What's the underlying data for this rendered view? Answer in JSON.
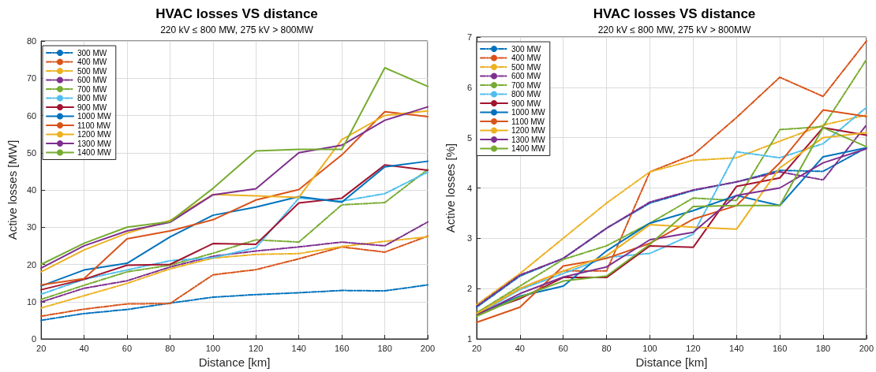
{
  "chart_data": [
    {
      "type": "line",
      "title": "HVAC losses VS distance",
      "subtitle": "220 kV ≤ 800 MW, 275 kV > 800MW",
      "xlabel": "Distance [km]",
      "ylabel": "Active losses [MW]",
      "x": [
        20,
        40,
        60,
        80,
        100,
        120,
        140,
        160,
        180,
        200
      ],
      "xlim": [
        20,
        200
      ],
      "xticks": [
        20,
        40,
        60,
        80,
        100,
        120,
        140,
        160,
        180,
        200
      ],
      "ylim": [
        0,
        80
      ],
      "yticks": [
        0,
        10,
        20,
        30,
        40,
        50,
        60,
        70,
        80
      ],
      "grid": true,
      "legend": "top left",
      "marker": "none",
      "series": [
        {
          "name": "300 MW",
          "color": "#0072bd",
          "line_style": "dashed",
          "values": [
            5,
            6.8,
            7.9,
            9.6,
            11.2,
            11.9,
            12.4,
            13,
            12.9,
            14.5
          ]
        },
        {
          "name": "400 MW",
          "color": "#d95319",
          "line_style": "dashed",
          "values": [
            6.1,
            8,
            9.4,
            9.5,
            17.2,
            18.6,
            21.5,
            24.7,
            23.3,
            27.6
          ]
        },
        {
          "name": "500 MW",
          "color": "#edb120",
          "line_style": "dashed",
          "values": [
            8.3,
            11.6,
            14.9,
            18.8,
            21.7,
            22.7,
            22.9,
            24.8,
            26.2,
            27.4
          ]
        },
        {
          "name": "600 MW",
          "color": "#7e2f8e",
          "line_style": "dashed",
          "values": [
            9.9,
            13.6,
            15.6,
            19.3,
            22.2,
            23.6,
            24.7,
            26,
            25,
            31.4
          ]
        },
        {
          "name": "700 MW",
          "color": "#77ac30",
          "line_style": "dashed",
          "values": [
            10.6,
            14.4,
            18,
            19.8,
            23,
            26.6,
            26,
            36,
            36.6,
            45.5
          ]
        },
        {
          "name": "800 MW",
          "color": "#4dbeee",
          "line_style": "dashed",
          "values": [
            12,
            16,
            18.5,
            21,
            21.8,
            24.5,
            37.8,
            37,
            39,
            44.8
          ]
        },
        {
          "name": "900 MW",
          "color": "#a2142f",
          "line_style": "solid",
          "values": [
            13.2,
            16,
            19.8,
            20,
            25.6,
            25.4,
            36.5,
            37.8,
            46.7,
            45.3
          ]
        },
        {
          "name": "1000 MW",
          "color": "#0072bd",
          "line_style": "solid",
          "values": [
            14.2,
            18.5,
            20.3,
            27.4,
            33.2,
            35.4,
            38.2,
            36.7,
            46.2,
            47.7
          ]
        },
        {
          "name": "1100 MW",
          "color": "#d95319",
          "line_style": "solid",
          "values": [
            14.5,
            16.2,
            26.9,
            29,
            32,
            37.3,
            40.1,
            49.4,
            61,
            59.7
          ]
        },
        {
          "name": "1200 MW",
          "color": "#edb120",
          "line_style": "solid",
          "values": [
            18,
            23.9,
            28.4,
            31.8,
            38.8,
            38.4,
            38,
            53.5,
            60,
            61.2
          ]
        },
        {
          "name": "1300 MW",
          "color": "#7e2f8e",
          "line_style": "solid",
          "values": [
            19,
            25,
            29,
            31.3,
            38.7,
            40.3,
            50,
            52,
            58.7,
            62.3
          ]
        },
        {
          "name": "1400 MW",
          "color": "#77ac30",
          "line_style": "solid",
          "values": [
            20,
            25.7,
            30,
            31.5,
            40.4,
            50.5,
            50.9,
            50.9,
            72.8,
            67.8
          ]
        }
      ]
    },
    {
      "type": "line",
      "title": "HVAC losses VS distance",
      "subtitle": "220 kV ≤ 800 MW, 275 kV > 800MW",
      "xlabel": "Distance [km]",
      "ylabel": "Active losses [%]",
      "x": [
        20,
        40,
        60,
        80,
        100,
        120,
        140,
        160,
        180,
        200
      ],
      "xlim": [
        20,
        200
      ],
      "xticks": [
        20,
        40,
        60,
        80,
        100,
        120,
        140,
        160,
        180,
        200
      ],
      "ylim": [
        1,
        7
      ],
      "yticks": [
        1,
        2,
        3,
        4,
        5,
        6,
        7
      ],
      "grid": true,
      "legend": "top left",
      "marker": "none",
      "series": [
        {
          "name": "300 MW",
          "color": "#0072bd",
          "line_style": "dashed",
          "values": [
            1.63,
            2.25,
            2.6,
            3.2,
            3.7,
            3.95,
            4.12,
            4.35,
            4.33,
            4.8
          ]
        },
        {
          "name": "400 MW",
          "color": "#d95319",
          "line_style": "dashed",
          "values": [
            1.5,
            2,
            2.35,
            2.35,
            4.32,
            4.66,
            5.4,
            6.2,
            5.82,
            6.92
          ]
        },
        {
          "name": "500 MW",
          "color": "#edb120",
          "line_style": "dashed",
          "values": [
            1.68,
            2.3,
            3,
            3.7,
            4.32,
            4.55,
            4.6,
            4.93,
            5.25,
            5.45
          ]
        },
        {
          "name": "600 MW",
          "color": "#7e2f8e",
          "line_style": "dashed",
          "values": [
            1.65,
            2.27,
            2.6,
            3.2,
            3.72,
            3.96,
            4.12,
            4.32,
            4.16,
            5.25
          ]
        },
        {
          "name": "700 MW",
          "color": "#77ac30",
          "line_style": "dashed",
          "values": [
            1.52,
            2.05,
            2.58,
            2.85,
            3.3,
            3.8,
            3.75,
            5.16,
            5.22,
            6.55
          ]
        },
        {
          "name": "800 MW",
          "color": "#4dbeee",
          "line_style": "dashed",
          "values": [
            1.48,
            1.98,
            2.3,
            2.62,
            2.7,
            3.08,
            4.72,
            4.6,
            4.88,
            5.6
          ]
        },
        {
          "name": "900 MW",
          "color": "#a2142f",
          "line_style": "solid",
          "values": [
            1.5,
            1.8,
            2.22,
            2.22,
            2.85,
            2.82,
            4.03,
            4.2,
            5.2,
            5.05
          ]
        },
        {
          "name": "1000 MW",
          "color": "#0072bd",
          "line_style": "solid",
          "values": [
            1.48,
            1.85,
            2.05,
            2.75,
            3.3,
            3.55,
            3.85,
            3.65,
            4.62,
            4.8
          ]
        },
        {
          "name": "1100 MW",
          "color": "#d95319",
          "line_style": "solid",
          "values": [
            1.33,
            1.63,
            2.45,
            2.6,
            2.9,
            3.38,
            3.65,
            4.5,
            5.55,
            5.42
          ]
        },
        {
          "name": "1200 MW",
          "color": "#edb120",
          "line_style": "solid",
          "values": [
            1.5,
            2,
            2.35,
            2.65,
            3.27,
            3.22,
            3.18,
            4.4,
            5,
            5.1
          ]
        },
        {
          "name": "1300 MW",
          "color": "#7e2f8e",
          "line_style": "solid",
          "values": [
            1.47,
            1.9,
            2.23,
            2.43,
            2.97,
            3.12,
            3.85,
            4,
            4.5,
            4.78
          ]
        },
        {
          "name": "1400 MW",
          "color": "#77ac30",
          "line_style": "solid",
          "values": [
            1.45,
            1.83,
            2.15,
            2.25,
            2.88,
            3.63,
            3.65,
            3.65,
            5.2,
            4.82
          ]
        }
      ]
    }
  ]
}
